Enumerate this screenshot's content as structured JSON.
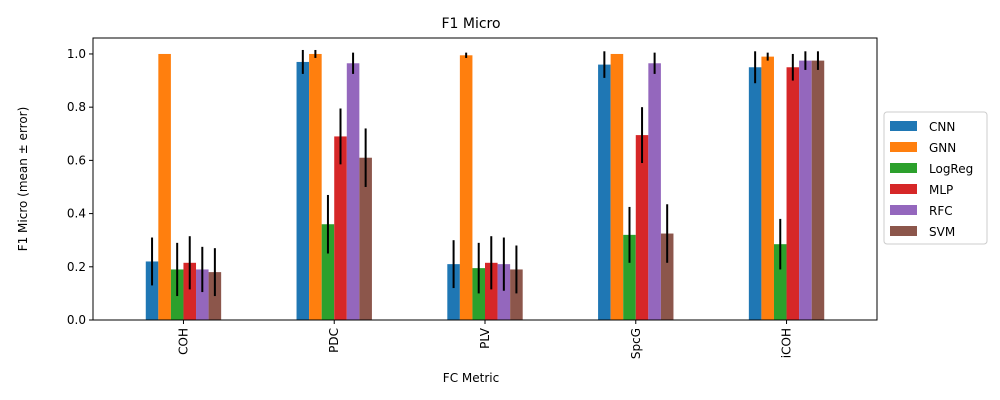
{
  "chart_data": {
    "type": "bar",
    "title": "F1 Micro",
    "xlabel": "FC Metric",
    "ylabel": "F1 Micro (mean ± error)",
    "categories": [
      "COH",
      "PDC",
      "PLV",
      "SpcG",
      "iCOH"
    ],
    "ylim": [
      0,
      1.06
    ],
    "yticks": [
      "0.0",
      "0.2",
      "0.4",
      "0.6",
      "0.8",
      "1.0"
    ],
    "legend_position": "right",
    "series": [
      {
        "name": "CNN",
        "color": "#1f77b4",
        "values": [
          0.22,
          0.97,
          0.21,
          0.96,
          0.95
        ],
        "errors": [
          0.09,
          0.045,
          0.09,
          0.05,
          0.06
        ]
      },
      {
        "name": "GNN",
        "color": "#ff7f0e",
        "values": [
          1.0,
          1.0,
          0.995,
          1.0,
          0.99
        ],
        "errors": [
          0.0,
          0.015,
          0.01,
          0.0,
          0.015
        ]
      },
      {
        "name": "LogReg",
        "color": "#2ca02c",
        "values": [
          0.19,
          0.36,
          0.195,
          0.32,
          0.285
        ],
        "errors": [
          0.1,
          0.11,
          0.095,
          0.105,
          0.095
        ]
      },
      {
        "name": "MLP",
        "color": "#d62728",
        "values": [
          0.215,
          0.69,
          0.215,
          0.695,
          0.95
        ],
        "errors": [
          0.1,
          0.105,
          0.1,
          0.105,
          0.05
        ]
      },
      {
        "name": "RFC",
        "color": "#9467bd",
        "values": [
          0.19,
          0.965,
          0.21,
          0.965,
          0.975
        ],
        "errors": [
          0.085,
          0.04,
          0.1,
          0.04,
          0.035
        ]
      },
      {
        "name": "SVM",
        "color": "#8c564b",
        "values": [
          0.18,
          0.61,
          0.19,
          0.325,
          0.975
        ],
        "errors": [
          0.09,
          0.11,
          0.09,
          0.11,
          0.035
        ]
      }
    ]
  }
}
